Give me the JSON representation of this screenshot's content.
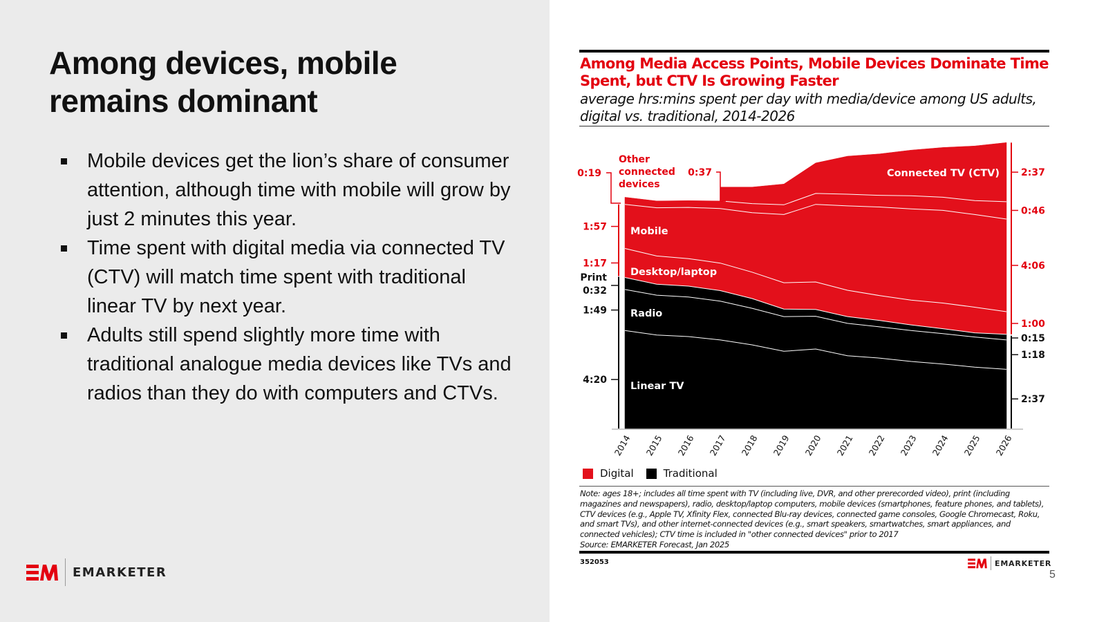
{
  "slide": {
    "title": "Among devices, mobile remains dominant",
    "bullets": [
      "Mobile devices get the lion’s share of consumer attention, although time with mobile will grow by just 2 minutes this year.",
      "Time spent with digital media via connected TV (CTV) will match time spent with traditional linear TV by next year.",
      "Adults still spend slightly more time with traditional analogue media devices like TVs and radios than they do with computers and CTVs."
    ],
    "logo_text": "EMARKETER",
    "page_number": "5"
  },
  "colors": {
    "digital": "#e3101b",
    "traditional": "#000000",
    "brand_red": "#e3000f"
  },
  "chart_data": {
    "type": "area",
    "stacked": true,
    "title": "Among Media Access Points, Mobile Devices Dominate Time Spent, but CTV Is Growing Faster",
    "subtitle": "average hrs:mins spent per day with media/device among US adults, digital vs. traditional, 2014-2026",
    "unit": "minutes per day",
    "x": [
      "2014",
      "2015",
      "2016",
      "2017",
      "2018",
      "2019",
      "2020",
      "2021",
      "2022",
      "2023",
      "2024",
      "2025",
      "2026"
    ],
    "series": [
      {
        "name": "Linear TV",
        "group": "Traditional",
        "values": [
          260,
          248,
          244,
          235,
          222,
          205,
          211,
          193,
          187,
          178,
          171,
          163,
          157
        ]
      },
      {
        "name": "Radio",
        "group": "Traditional",
        "values": [
          109,
          106,
          105,
          103,
          97,
          92,
          87,
          86,
          83,
          82,
          81,
          80,
          78
        ]
      },
      {
        "name": "Print",
        "group": "Traditional",
        "values": [
          32,
          29,
          29,
          28,
          26,
          20,
          18,
          18,
          17,
          15,
          13,
          11,
          15
        ]
      },
      {
        "name": "Desktop/laptop",
        "group": "Digital",
        "values": [
          77,
          75,
          73,
          73,
          70,
          70,
          73,
          70,
          66,
          66,
          68,
          68,
          60
        ]
      },
      {
        "name": "Mobile",
        "group": "Digital",
        "values": [
          117,
          128,
          136,
          145,
          158,
          181,
          206,
          224,
          235,
          242,
          246,
          246,
          246
        ]
      },
      {
        "name": "Other connected devices",
        "group": "Digital",
        "values": [
          19,
          18,
          18,
          20,
          24,
          26,
          29,
          31,
          31,
          35,
          35,
          37,
          46
        ]
      },
      {
        "name": "Connected TV (CTV)",
        "group": "Digital",
        "values": [
          0,
          0,
          0,
          37,
          44,
          55,
          81,
          101,
          110,
          121,
          132,
          145,
          157
        ]
      }
    ],
    "annotations": {
      "left": [
        {
          "label": "Other connected devices",
          "value": "0:19",
          "series": "Other connected devices"
        },
        {
          "label": "Mobile",
          "value": "1:57",
          "series": "Mobile"
        },
        {
          "label": "Desktop/laptop",
          "value": "1:17",
          "series": "Desktop/laptop"
        },
        {
          "label": "Print",
          "value": "0:32",
          "series": "Print"
        },
        {
          "label": "Radio",
          "value": "1:49",
          "series": "Radio"
        },
        {
          "label": "Linear TV",
          "value": "4:20",
          "series": "Linear TV"
        }
      ],
      "ctv_2017": "0:37",
      "right": [
        {
          "value": "2:37",
          "series": "Connected TV (CTV)"
        },
        {
          "value": "0:46",
          "series": "Other connected devices"
        },
        {
          "value": "4:06",
          "series": "Mobile"
        },
        {
          "value": "1:00",
          "series": "Desktop/laptop"
        },
        {
          "value": "0:15",
          "series": "Print"
        },
        {
          "value": "1:18",
          "series": "Radio"
        },
        {
          "value": "2:37",
          "series": "Linear TV"
        }
      ]
    },
    "area_labels": [
      "Connected TV (CTV)",
      "Mobile",
      "Desktop/laptop",
      "Radio",
      "Linear TV"
    ],
    "callout_label": "Other connected devices",
    "print_label": "Print",
    "legend": [
      {
        "name": "Digital",
        "color": "#e3101b"
      },
      {
        "name": "Traditional",
        "color": "#000000"
      }
    ],
    "legend_position": "bottom-left",
    "grid": false,
    "note": "Note: ages 18+; includes all time spent with TV (including live, DVR, and other prerecorded video), print (including magazines and newspapers), radio, desktop/laptop computers, mobile devices (smartphones, feature phones, and tablets), CTV devices (e.g., Apple TV, Xfinity Flex, connected Blu-ray devices, connected game consoles, Google Chromecast, Roku, and smart TVs), and other internet-connected devices (e.g., smart speakers, smartwatches, smart appliances, and connected vehicles); CTV time is included in \"other connected devices\" prior to 2017",
    "source": "Source: EMARKETER Forecast, Jan 2025",
    "chart_id": "352053"
  }
}
